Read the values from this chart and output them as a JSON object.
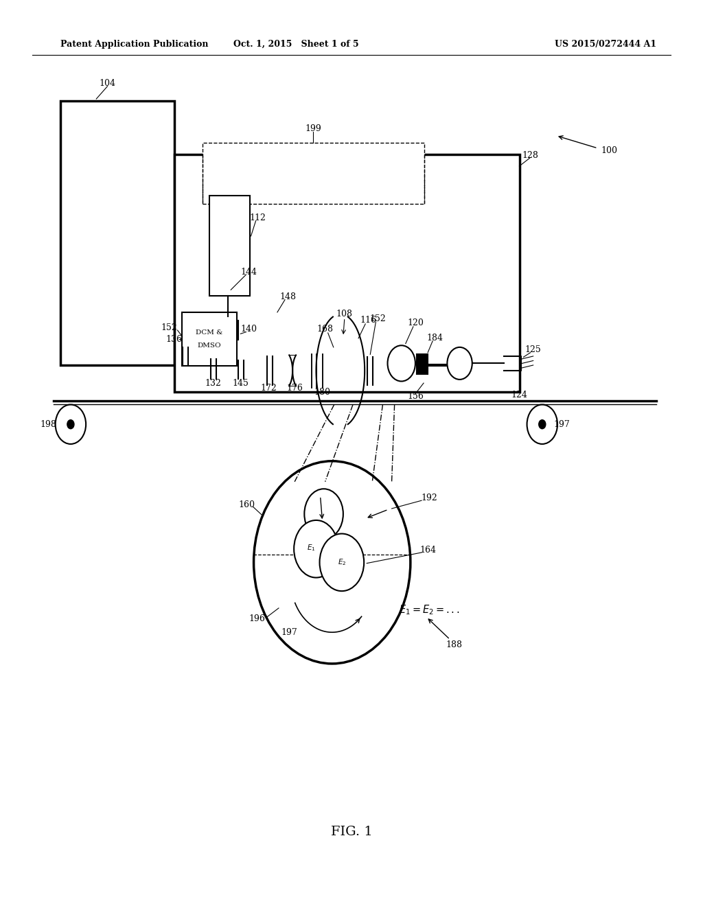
{
  "bg_color": "#ffffff",
  "header_left": "Patent Application Publication",
  "header_mid": "Oct. 1, 2015   Sheet 1 of 5",
  "header_right": "US 2015/0272444 A1",
  "figure_label": "FIG. 1",
  "fs": 9,
  "lw": 1.5,
  "lw_thick": 2.5
}
